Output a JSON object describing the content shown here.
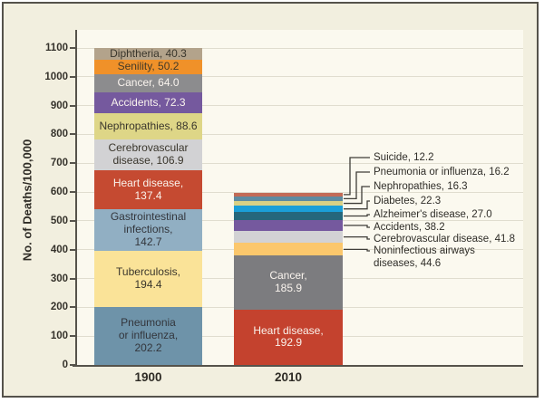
{
  "frame": {
    "background": "#f2efdf",
    "border_color": "#55524b",
    "plot_background": "#fbf9ef",
    "gridline_color": "#e0ddcf",
    "axis_color": "#56534b",
    "leader_line_color": "#3f3d38"
  },
  "chart_data": {
    "type": "bar",
    "stacked": true,
    "title": "",
    "xlabel": "",
    "ylabel": "No. of Deaths/100,000",
    "ylim": [
      0,
      1100
    ],
    "y_ticks": [
      0,
      100,
      200,
      300,
      400,
      500,
      600,
      700,
      800,
      900,
      1000,
      1100
    ],
    "grid": true,
    "categories": [
      "1900",
      "2010"
    ],
    "bars": [
      {
        "category": "1900",
        "total": 1099.0,
        "segments": [
          {
            "name": "Pneumonia or influenza",
            "value": 202.2,
            "color": "#6e93a9",
            "text_color": "#33363c",
            "label_lines": [
              "Pneumonia",
              "or influenza,",
              "202.2"
            ]
          },
          {
            "name": "Tuberculosis",
            "value": 194.4,
            "color": "#fae398",
            "text_color": "#3a362c",
            "label_lines": [
              "Tuberculosis,",
              "194.4"
            ]
          },
          {
            "name": "Gastrointestinal infections",
            "value": 142.7,
            "color": "#91afc3",
            "text_color": "#33363c",
            "label_lines": [
              "Gastrointestinal",
              "infections,",
              "142.7"
            ]
          },
          {
            "name": "Heart disease",
            "value": 137.4,
            "color": "#c54a31",
            "text_color": "#faf3ec",
            "label_lines": [
              "Heart disease,",
              "137.4"
            ]
          },
          {
            "name": "Cerebrovascular disease",
            "value": 106.9,
            "color": "#d2d2d4",
            "text_color": "#3a362c",
            "label_lines": [
              "Cerebrovascular",
              "disease, 106.9"
            ]
          },
          {
            "name": "Nephropathies",
            "value": 88.6,
            "color": "#ded687",
            "text_color": "#3a362c",
            "label_lines": [
              "Nephropathies, 88.6"
            ]
          },
          {
            "name": "Accidents",
            "value": 72.3,
            "color": "#75599e",
            "text_color": "#faf4ee",
            "label_lines": [
              "Accidents, 72.3"
            ]
          },
          {
            "name": "Cancer",
            "value": 64.0,
            "color": "#8c8c8e",
            "text_color": "#faf4ee",
            "label_lines": [
              "Cancer, 64.0"
            ]
          },
          {
            "name": "Senility",
            "value": 50.2,
            "color": "#f09129",
            "text_color": "#433a28",
            "label_lines": [
              "Senility, 50.2"
            ]
          },
          {
            "name": "Diphtheria",
            "value": 40.3,
            "color": "#b3a38b",
            "text_color": "#3a362c",
            "label_lines": [
              "Diphtheria, 40.3"
            ]
          }
        ]
      },
      {
        "category": "2010",
        "total": 597.4,
        "segments": [
          {
            "name": "Heart disease",
            "value": 192.9,
            "color": "#c4422e",
            "text_color": "#faf3ec",
            "label_lines": [
              "Heart disease,",
              "192.9"
            ]
          },
          {
            "name": "Cancer",
            "value": 185.9,
            "color": "#7c7c7f",
            "text_color": "#faf4ee",
            "label_lines": [
              "Cancer,",
              "185.9"
            ]
          },
          {
            "name": "Noninfectious airways diseases",
            "value": 44.6,
            "color": "#fbc76c",
            "text_color": null,
            "label_lines": null
          },
          {
            "name": "Cerebrovascular disease",
            "value": 41.8,
            "color": "#d2d2d4",
            "text_color": null,
            "label_lines": null
          },
          {
            "name": "Accidents",
            "value": 38.2,
            "color": "#75599e",
            "text_color": null,
            "label_lines": null
          },
          {
            "name": "Alzheimer's disease",
            "value": 27.0,
            "color": "#25677c",
            "text_color": null,
            "label_lines": null
          },
          {
            "name": "Diabetes",
            "value": 22.3,
            "color": "#1b9fd8",
            "text_color": null,
            "label_lines": null
          },
          {
            "name": "Nephropathies",
            "value": 16.3,
            "color": "#d9d186",
            "text_color": null,
            "label_lines": null
          },
          {
            "name": "Pneumonia or influenza",
            "value": 16.2,
            "color": "#5d8ba1",
            "text_color": null,
            "label_lines": null
          },
          {
            "name": "Suicide",
            "value": 12.2,
            "color": "#c36b56",
            "text_color": null,
            "label_lines": null
          }
        ],
        "callouts": [
          {
            "segment": "Suicide",
            "lines": [
              "Suicide, 12.2"
            ]
          },
          {
            "segment": "Pneumonia or influenza",
            "lines": [
              "Pneumonia or influenza, 16.2"
            ]
          },
          {
            "segment": "Nephropathies",
            "lines": [
              "Nephropathies, 16.3"
            ]
          },
          {
            "segment": "Diabetes",
            "lines": [
              "Diabetes, 22.3"
            ]
          },
          {
            "segment": "Alzheimer's disease",
            "lines": [
              "Alzheimer's disease, 27.0"
            ]
          },
          {
            "segment": "Accidents",
            "lines": [
              "Accidents, 38.2"
            ]
          },
          {
            "segment": "Cerebrovascular disease",
            "lines": [
              "Cerebrovascular disease, 41.8"
            ]
          },
          {
            "segment": "Noninfectious airways diseases",
            "lines": [
              "Noninfectious airways",
              "diseases, 44.6"
            ]
          }
        ]
      }
    ]
  }
}
